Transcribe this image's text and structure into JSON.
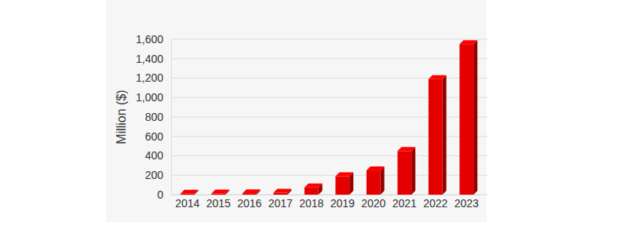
{
  "chart_data": {
    "type": "bar",
    "y_label": "Million ($)",
    "categories": [
      "2014",
      "2015",
      "2016",
      "2017",
      "2018",
      "2019",
      "2020",
      "2021",
      "2022",
      "2023"
    ],
    "values": [
      10,
      12,
      15,
      20,
      75,
      190,
      250,
      450,
      1190,
      1550
    ],
    "color": "#e50000",
    "ylim": [
      0,
      1600
    ],
    "yticks": [
      0,
      200,
      400,
      600,
      800,
      {
        "value": 1000,
        "label": "1,000"
      },
      {
        "value": 1200,
        "label": "1,200"
      },
      {
        "value": 1400,
        "label": "1,400"
      },
      {
        "value": 1600,
        "label": "1,600"
      }
    ],
    "grid": true
  }
}
